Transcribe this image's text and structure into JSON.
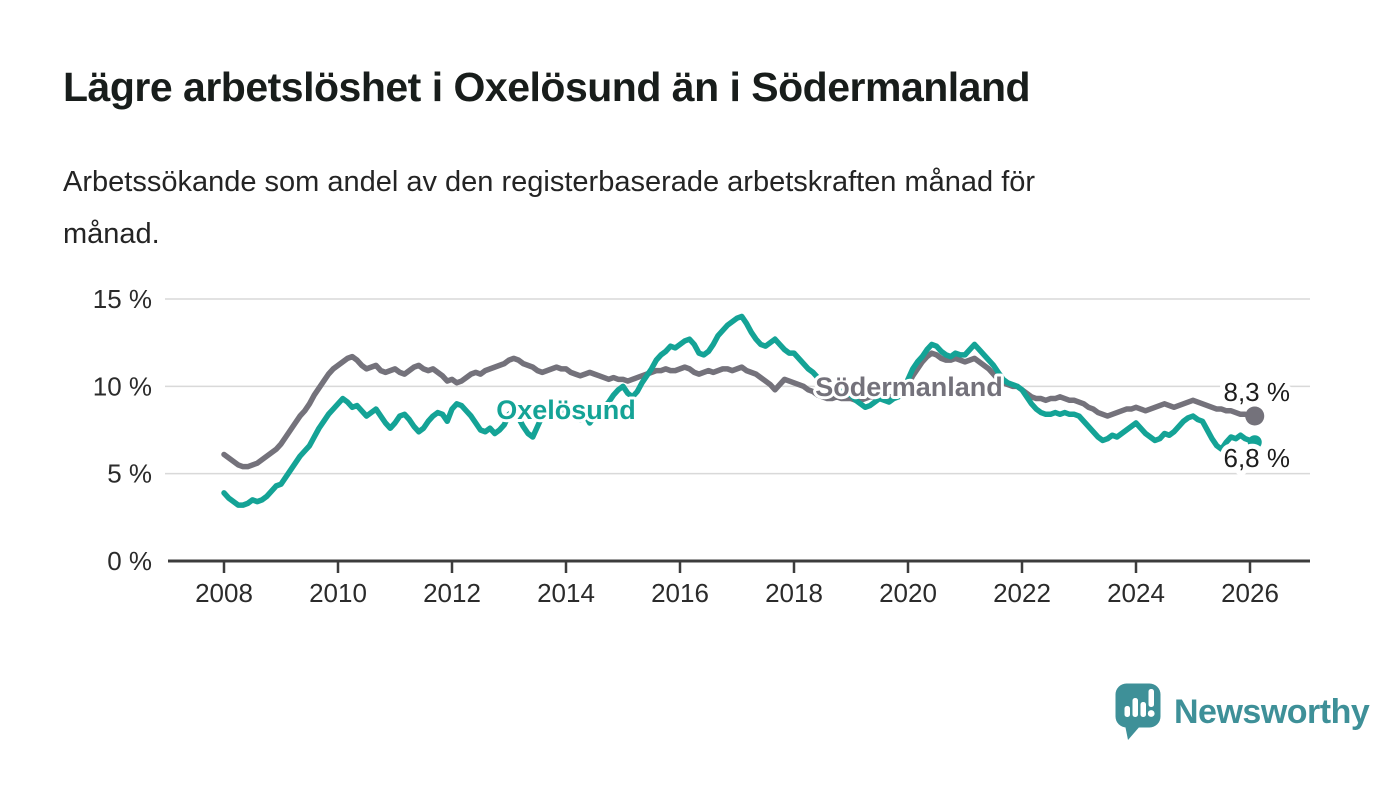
{
  "header": {
    "title": "Lägre arbetslöshet i Oxelösund än i Södermanland",
    "subtitle": {
      "lines": [
        "Arbetssökande som andel av den registerbaserade arbetskraften månad för",
        "månad."
      ]
    }
  },
  "colors": {
    "oxelosund": "#14A396",
    "sodermanland": "#74727B",
    "grid": "#d9d9d9",
    "axis": "#3c3c3c",
    "tick_text": "#2b2b2b",
    "value_text": "#1d1d1d",
    "brand": "#3E9098"
  },
  "chart_data": {
    "type": "line",
    "title": "Lägre arbetslöshet i Oxelösund än i Södermanland",
    "xlabel": "",
    "ylabel": "",
    "x_start": 2008.0,
    "x_step_months": 1,
    "x_end_label_note": "monthly values Jan 2008 - Feb 2026",
    "ylim": [
      0,
      15.8
    ],
    "grid": "horizontal",
    "legend_position": "inline",
    "yticks": [
      {
        "value": 0,
        "label": "0 %"
      },
      {
        "value": 5,
        "label": "5 %"
      },
      {
        "value": 10,
        "label": "10 %"
      },
      {
        "value": 15,
        "label": "15 %"
      }
    ],
    "xticks": [
      2008,
      2010,
      2012,
      2014,
      2016,
      2018,
      2020,
      2022,
      2024,
      2026
    ],
    "series": [
      {
        "name": "Södermanland",
        "inline_label": "Södermanland",
        "end_label": "8,3 %",
        "end_value": 8.3,
        "color": "#74727B",
        "values": [
          6.1,
          5.9,
          5.7,
          5.5,
          5.4,
          5.4,
          5.5,
          5.6,
          5.8,
          6.0,
          6.2,
          6.4,
          6.7,
          7.1,
          7.5,
          7.9,
          8.3,
          8.6,
          9.0,
          9.5,
          9.9,
          10.3,
          10.7,
          11.0,
          11.2,
          11.4,
          11.6,
          11.7,
          11.5,
          11.2,
          11.0,
          11.1,
          11.2,
          10.9,
          10.8,
          10.9,
          11.0,
          10.8,
          10.7,
          10.9,
          11.1,
          11.2,
          11.0,
          10.9,
          11.0,
          10.8,
          10.6,
          10.3,
          10.4,
          10.2,
          10.3,
          10.5,
          10.7,
          10.8,
          10.7,
          10.9,
          11.0,
          11.1,
          11.2,
          11.3,
          11.5,
          11.6,
          11.5,
          11.3,
          11.2,
          11.1,
          10.9,
          10.8,
          10.9,
          11.0,
          11.1,
          11.0,
          11.0,
          10.8,
          10.7,
          10.6,
          10.7,
          10.8,
          10.7,
          10.6,
          10.5,
          10.4,
          10.5,
          10.4,
          10.4,
          10.3,
          10.4,
          10.5,
          10.6,
          10.7,
          10.8,
          10.9,
          10.9,
          11.0,
          10.9,
          10.9,
          11.0,
          11.1,
          11.0,
          10.8,
          10.7,
          10.8,
          10.9,
          10.8,
          10.9,
          11.0,
          11.0,
          10.9,
          11.0,
          11.1,
          10.9,
          10.8,
          10.7,
          10.5,
          10.3,
          10.1,
          9.8,
          10.1,
          10.4,
          10.3,
          10.2,
          10.1,
          10.0,
          9.8,
          9.7,
          9.5,
          9.4,
          9.3,
          9.3,
          9.4,
          9.3,
          9.3,
          9.3,
          9.2,
          9.2,
          9.3,
          9.4,
          9.4,
          9.3,
          9.3,
          9.4,
          9.4,
          9.5,
          9.7,
          10.1,
          10.6,
          11.0,
          11.4,
          11.7,
          11.9,
          11.8,
          11.6,
          11.5,
          11.5,
          11.6,
          11.5,
          11.4,
          11.5,
          11.6,
          11.4,
          11.2,
          11.0,
          10.7,
          10.4,
          10.2,
          10.1,
          10.0,
          10.0,
          9.8,
          9.6,
          9.4,
          9.3,
          9.3,
          9.2,
          9.3,
          9.3,
          9.4,
          9.3,
          9.2,
          9.2,
          9.1,
          9.0,
          8.8,
          8.7,
          8.5,
          8.4,
          8.3,
          8.4,
          8.5,
          8.6,
          8.7,
          8.7,
          8.8,
          8.7,
          8.6,
          8.7,
          8.8,
          8.9,
          9.0,
          8.9,
          8.8,
          8.9,
          9.0,
          9.1,
          9.2,
          9.1,
          9.0,
          8.9,
          8.8,
          8.7,
          8.7,
          8.6,
          8.6,
          8.5,
          8.4,
          8.4,
          8.3,
          8.3
        ]
      },
      {
        "name": "Oxelösund",
        "inline_label": "Oxelösund",
        "end_label": "6,8 %",
        "end_value": 6.8,
        "color": "#14A396",
        "values": [
          3.9,
          3.6,
          3.4,
          3.2,
          3.2,
          3.3,
          3.5,
          3.4,
          3.5,
          3.7,
          4.0,
          4.3,
          4.4,
          4.8,
          5.2,
          5.6,
          6.0,
          6.3,
          6.6,
          7.1,
          7.6,
          8.0,
          8.4,
          8.7,
          9.0,
          9.3,
          9.1,
          8.8,
          8.9,
          8.6,
          8.3,
          8.5,
          8.7,
          8.3,
          7.9,
          7.6,
          7.9,
          8.3,
          8.4,
          8.1,
          7.7,
          7.4,
          7.6,
          8.0,
          8.3,
          8.5,
          8.4,
          8.0,
          8.7,
          9.0,
          8.9,
          8.6,
          8.3,
          7.9,
          7.5,
          7.4,
          7.6,
          7.3,
          7.5,
          7.8,
          8.4,
          8.6,
          8.2,
          7.7,
          7.3,
          7.1,
          7.7,
          8.3,
          8.8,
          9.0,
          8.7,
          8.6,
          8.8,
          8.6,
          8.3,
          8.1,
          8.4,
          7.9,
          8.3,
          8.6,
          8.8,
          9.1,
          9.5,
          9.8,
          10.0,
          9.6,
          9.4,
          9.7,
          10.2,
          10.6,
          11.0,
          11.5,
          11.8,
          12.0,
          12.3,
          12.2,
          12.4,
          12.6,
          12.7,
          12.4,
          11.9,
          11.8,
          12.0,
          12.4,
          12.9,
          13.2,
          13.5,
          13.7,
          13.9,
          14.0,
          13.6,
          13.1,
          12.7,
          12.4,
          12.3,
          12.5,
          12.7,
          12.4,
          12.1,
          11.9,
          11.9,
          11.6,
          11.3,
          11.0,
          10.8,
          10.5,
          10.4,
          10.2,
          10.0,
          9.8,
          9.7,
          9.6,
          9.5,
          9.2,
          9.0,
          8.8,
          8.9,
          9.1,
          9.3,
          9.2,
          9.1,
          9.3,
          9.4,
          9.8,
          10.4,
          11.0,
          11.4,
          11.7,
          12.1,
          12.4,
          12.3,
          12.0,
          11.8,
          11.7,
          11.9,
          11.8,
          11.8,
          12.1,
          12.4,
          12.1,
          11.8,
          11.5,
          11.2,
          10.8,
          10.4,
          10.2,
          10.1,
          10.0,
          9.8,
          9.4,
          9.0,
          8.7,
          8.5,
          8.4,
          8.4,
          8.5,
          8.4,
          8.5,
          8.4,
          8.4,
          8.3,
          8.0,
          7.7,
          7.4,
          7.1,
          6.9,
          7.0,
          7.2,
          7.1,
          7.3,
          7.5,
          7.7,
          7.9,
          7.6,
          7.3,
          7.1,
          6.9,
          7.0,
          7.3,
          7.2,
          7.4,
          7.7,
          8.0,
          8.2,
          8.3,
          8.1,
          8.0,
          7.5,
          7.0,
          6.6,
          6.4,
          6.8,
          7.1,
          7.0,
          7.2,
          7.0,
          6.9,
          6.8
        ]
      }
    ]
  },
  "footer": {
    "brand": "Newsworthy"
  }
}
